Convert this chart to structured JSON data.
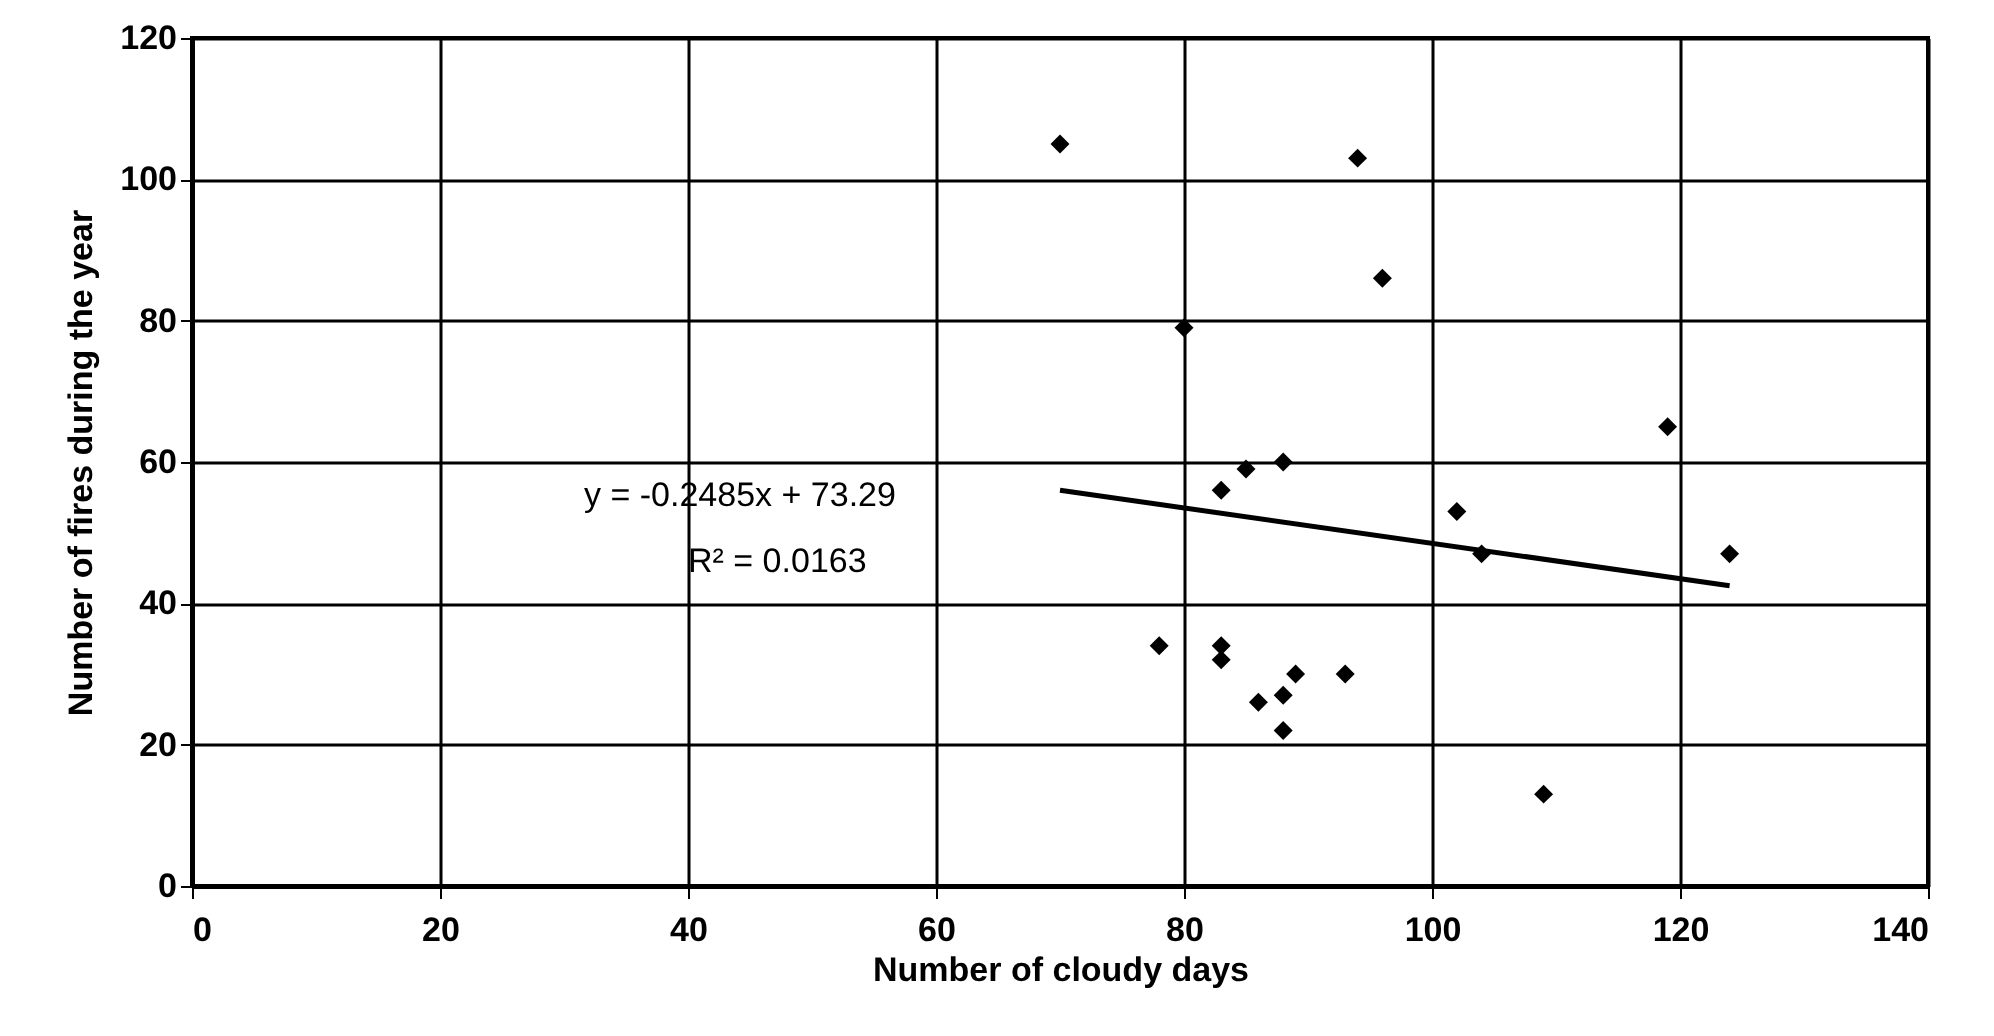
{
  "chart_data": {
    "type": "scatter",
    "xlabel": "Number of cloudy days",
    "ylabel": "Number of fires during the year",
    "annotations": [
      "y = -0.2485x + 73.29",
      "R² = 0.0163"
    ],
    "series": [
      {
        "color": "#000000",
        "x": [
          70,
          94,
          96,
          80,
          88,
          85,
          83,
          102,
          104,
          78,
          83,
          83,
          89,
          93,
          88,
          86,
          88,
          109,
          119,
          124
        ],
        "values": [
          105,
          103,
          86,
          79,
          60,
          59,
          56,
          53,
          47,
          34,
          34,
          32,
          30,
          30,
          27,
          26,
          22,
          13,
          65,
          47
        ]
      },
      {
        "type": "line",
        "marker": "none",
        "color": "#000000",
        "x": [
          70,
          124
        ],
        "values": [
          56,
          42.5
        ]
      }
    ],
    "xlim": [
      0,
      140
    ],
    "xticks": [
      0,
      20,
      40,
      60,
      80,
      100,
      120,
      140
    ],
    "ylim": [
      0,
      120
    ],
    "yticks": [
      0,
      20,
      40,
      60,
      80,
      100,
      120
    ],
    "grid": true,
    "marker": "diamond"
  }
}
